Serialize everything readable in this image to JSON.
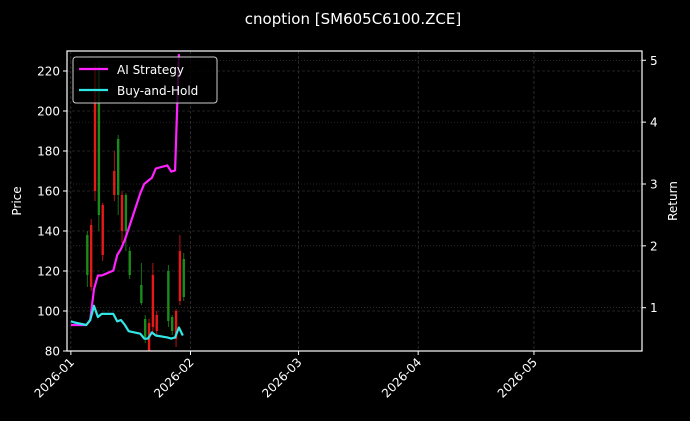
{
  "chart_data": {
    "type": "line",
    "title": "cnoption [SM605C6100.ZCE]",
    "xlabel": "",
    "ylabel": "Price",
    "y2label": "Return",
    "ylim": [
      80,
      230
    ],
    "y2lim": [
      0.3,
      5.15
    ],
    "xlim": [
      "2025-12-31",
      "2026-05-29"
    ],
    "grid": true,
    "legend_position": "upper left",
    "x_ticks": [
      "2026-01",
      "2026-02",
      "2026-03",
      "2026-04",
      "2026-05"
    ],
    "y_ticks": [
      80,
      100,
      120,
      140,
      160,
      180,
      200,
      220
    ],
    "y2_ticks": [
      1,
      2,
      3,
      4,
      5
    ],
    "colors": {
      "background": "#000000",
      "axes": "#ffffff",
      "grid": "#444444",
      "ai_strategy": "#ff22ff",
      "buy_and_hold": "#33e6e6",
      "candle_up": "#1a8c1a",
      "candle_down": "#e61919"
    },
    "series": [
      {
        "name": "AI Strategy",
        "axis": "right",
        "x": [
          "2026-01-01",
          "2026-01-02",
          "2026-01-05",
          "2026-01-06",
          "2026-01-07",
          "2026-01-08",
          "2026-01-09",
          "2026-01-12",
          "2026-01-13",
          "2026-01-14",
          "2026-01-15",
          "2026-01-16",
          "2026-01-19",
          "2026-01-20",
          "2026-01-21",
          "2026-01-22",
          "2026-01-23",
          "2026-01-26",
          "2026-01-27",
          "2026-01-28",
          "2026-01-29"
        ],
        "values": [
          0.72,
          0.72,
          0.72,
          0.8,
          1.3,
          1.52,
          1.52,
          1.6,
          1.85,
          1.95,
          2.1,
          2.28,
          2.85,
          3.0,
          3.05,
          3.1,
          3.25,
          3.3,
          3.2,
          3.22,
          5.1
        ]
      },
      {
        "name": "Buy-and-Hold",
        "axis": "right",
        "x": [
          "2026-01-01",
          "2026-01-02",
          "2026-01-05",
          "2026-01-06",
          "2026-01-07",
          "2026-01-08",
          "2026-01-09",
          "2026-01-12",
          "2026-01-13",
          "2026-01-14",
          "2026-01-15",
          "2026-01-16",
          "2026-01-19",
          "2026-01-20",
          "2026-01-21",
          "2026-01-22",
          "2026-01-23",
          "2026-01-26",
          "2026-01-27",
          "2026-01-28",
          "2026-01-29",
          "2026-01-30"
        ],
        "values": [
          0.78,
          0.76,
          0.72,
          0.8,
          1.03,
          0.85,
          0.9,
          0.9,
          0.78,
          0.8,
          0.72,
          0.62,
          0.58,
          0.5,
          0.5,
          0.6,
          0.55,
          0.52,
          0.5,
          0.52,
          0.68,
          0.55
        ]
      }
    ],
    "candles": [
      {
        "date": "2026-01-05",
        "open": 118,
        "close": 138,
        "high": 140,
        "low": 112,
        "dir": "up"
      },
      {
        "date": "2026-01-06",
        "open": 143,
        "close": 112,
        "high": 146,
        "low": 110,
        "dir": "down"
      },
      {
        "date": "2026-01-07",
        "open": 222,
        "close": 160,
        "high": 224,
        "low": 155,
        "dir": "down"
      },
      {
        "date": "2026-01-08",
        "open": 148,
        "close": 222,
        "high": 225,
        "low": 140,
        "dir": "up"
      },
      {
        "date": "2026-01-09",
        "open": 153,
        "close": 128,
        "high": 154,
        "low": 125,
        "dir": "down"
      },
      {
        "date": "2026-01-12",
        "open": 170,
        "close": 158,
        "high": 180,
        "low": 155,
        "dir": "down"
      },
      {
        "date": "2026-01-13",
        "open": 158,
        "close": 186,
        "high": 188,
        "low": 148,
        "dir": "up"
      },
      {
        "date": "2026-01-14",
        "open": 158,
        "close": 140,
        "high": 160,
        "low": 134,
        "dir": "down"
      },
      {
        "date": "2026-01-15",
        "open": 140,
        "close": 158,
        "high": 159,
        "low": 130,
        "dir": "up"
      },
      {
        "date": "2026-01-16",
        "open": 130,
        "close": 118,
        "high": 132,
        "low": 116,
        "dir": "up"
      },
      {
        "date": "2026-01-19",
        "open": 113,
        "close": 104,
        "high": 124,
        "low": 103,
        "dir": "up"
      },
      {
        "date": "2026-01-20",
        "open": 96,
        "close": 87,
        "high": 98,
        "low": 84,
        "dir": "up"
      },
      {
        "date": "2026-01-21",
        "open": 94,
        "close": 80,
        "high": 96,
        "low": 78,
        "dir": "down"
      },
      {
        "date": "2026-01-22",
        "open": 118,
        "close": 92,
        "high": 124,
        "low": 88,
        "dir": "down"
      },
      {
        "date": "2026-01-23",
        "open": 98,
        "close": 90,
        "high": 100,
        "low": 87,
        "dir": "down"
      },
      {
        "date": "2026-01-26",
        "open": 120,
        "close": 95,
        "high": 123,
        "low": 92,
        "dir": "up"
      },
      {
        "date": "2026-01-27",
        "open": 97,
        "close": 90,
        "high": 98,
        "low": 88,
        "dir": "up"
      },
      {
        "date": "2026-01-28",
        "open": 100,
        "close": 86,
        "high": 101,
        "low": 82,
        "dir": "down"
      },
      {
        "date": "2026-01-29",
        "open": 130,
        "close": 105,
        "high": 138,
        "low": 103,
        "dir": "down"
      },
      {
        "date": "2026-01-30",
        "open": 107,
        "close": 126,
        "high": 129,
        "low": 105,
        "dir": "up"
      }
    ]
  },
  "legend": {
    "items": [
      {
        "label": "AI Strategy"
      },
      {
        "label": "Buy-and-Hold"
      }
    ]
  }
}
